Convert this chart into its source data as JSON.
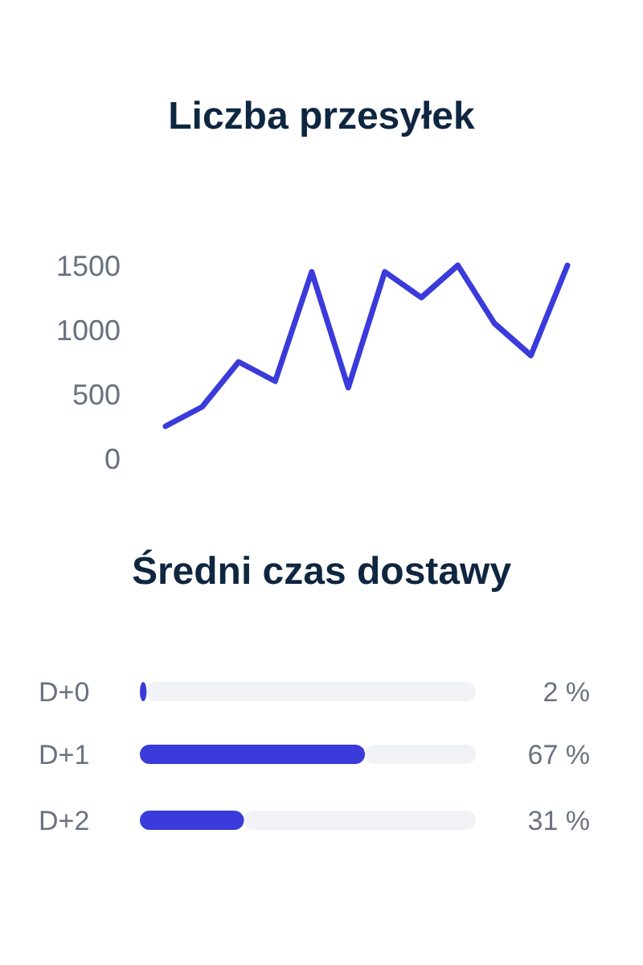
{
  "chart_data": [
    {
      "type": "line",
      "title": "Liczba przesyłek",
      "categories": [
        null,
        null,
        null,
        null,
        null,
        null,
        null,
        null,
        null,
        null,
        null,
        null
      ],
      "ylim": [
        0,
        1500
      ],
      "yticks": [
        0,
        500,
        1000,
        1500
      ],
      "tick_labels": "y",
      "grid": false,
      "series": [
        {
          "color": "#3b3bdb",
          "values": [
            250,
            400,
            750,
            600,
            1450,
            550,
            1450,
            1250,
            1500,
            1050,
            800,
            1500
          ]
        }
      ]
    },
    {
      "type": "bar",
      "orientation": "horizontal",
      "title": "Średni czas dostawy",
      "categories": [
        "D+0",
        "D+1",
        "D+2"
      ],
      "values": [
        2,
        67,
        31
      ],
      "value_labels": [
        "2 %",
        "67 %",
        "31 %"
      ],
      "color": "#3b3bdb",
      "xlim": [
        0,
        100
      ],
      "tick_labels": false
    }
  ]
}
